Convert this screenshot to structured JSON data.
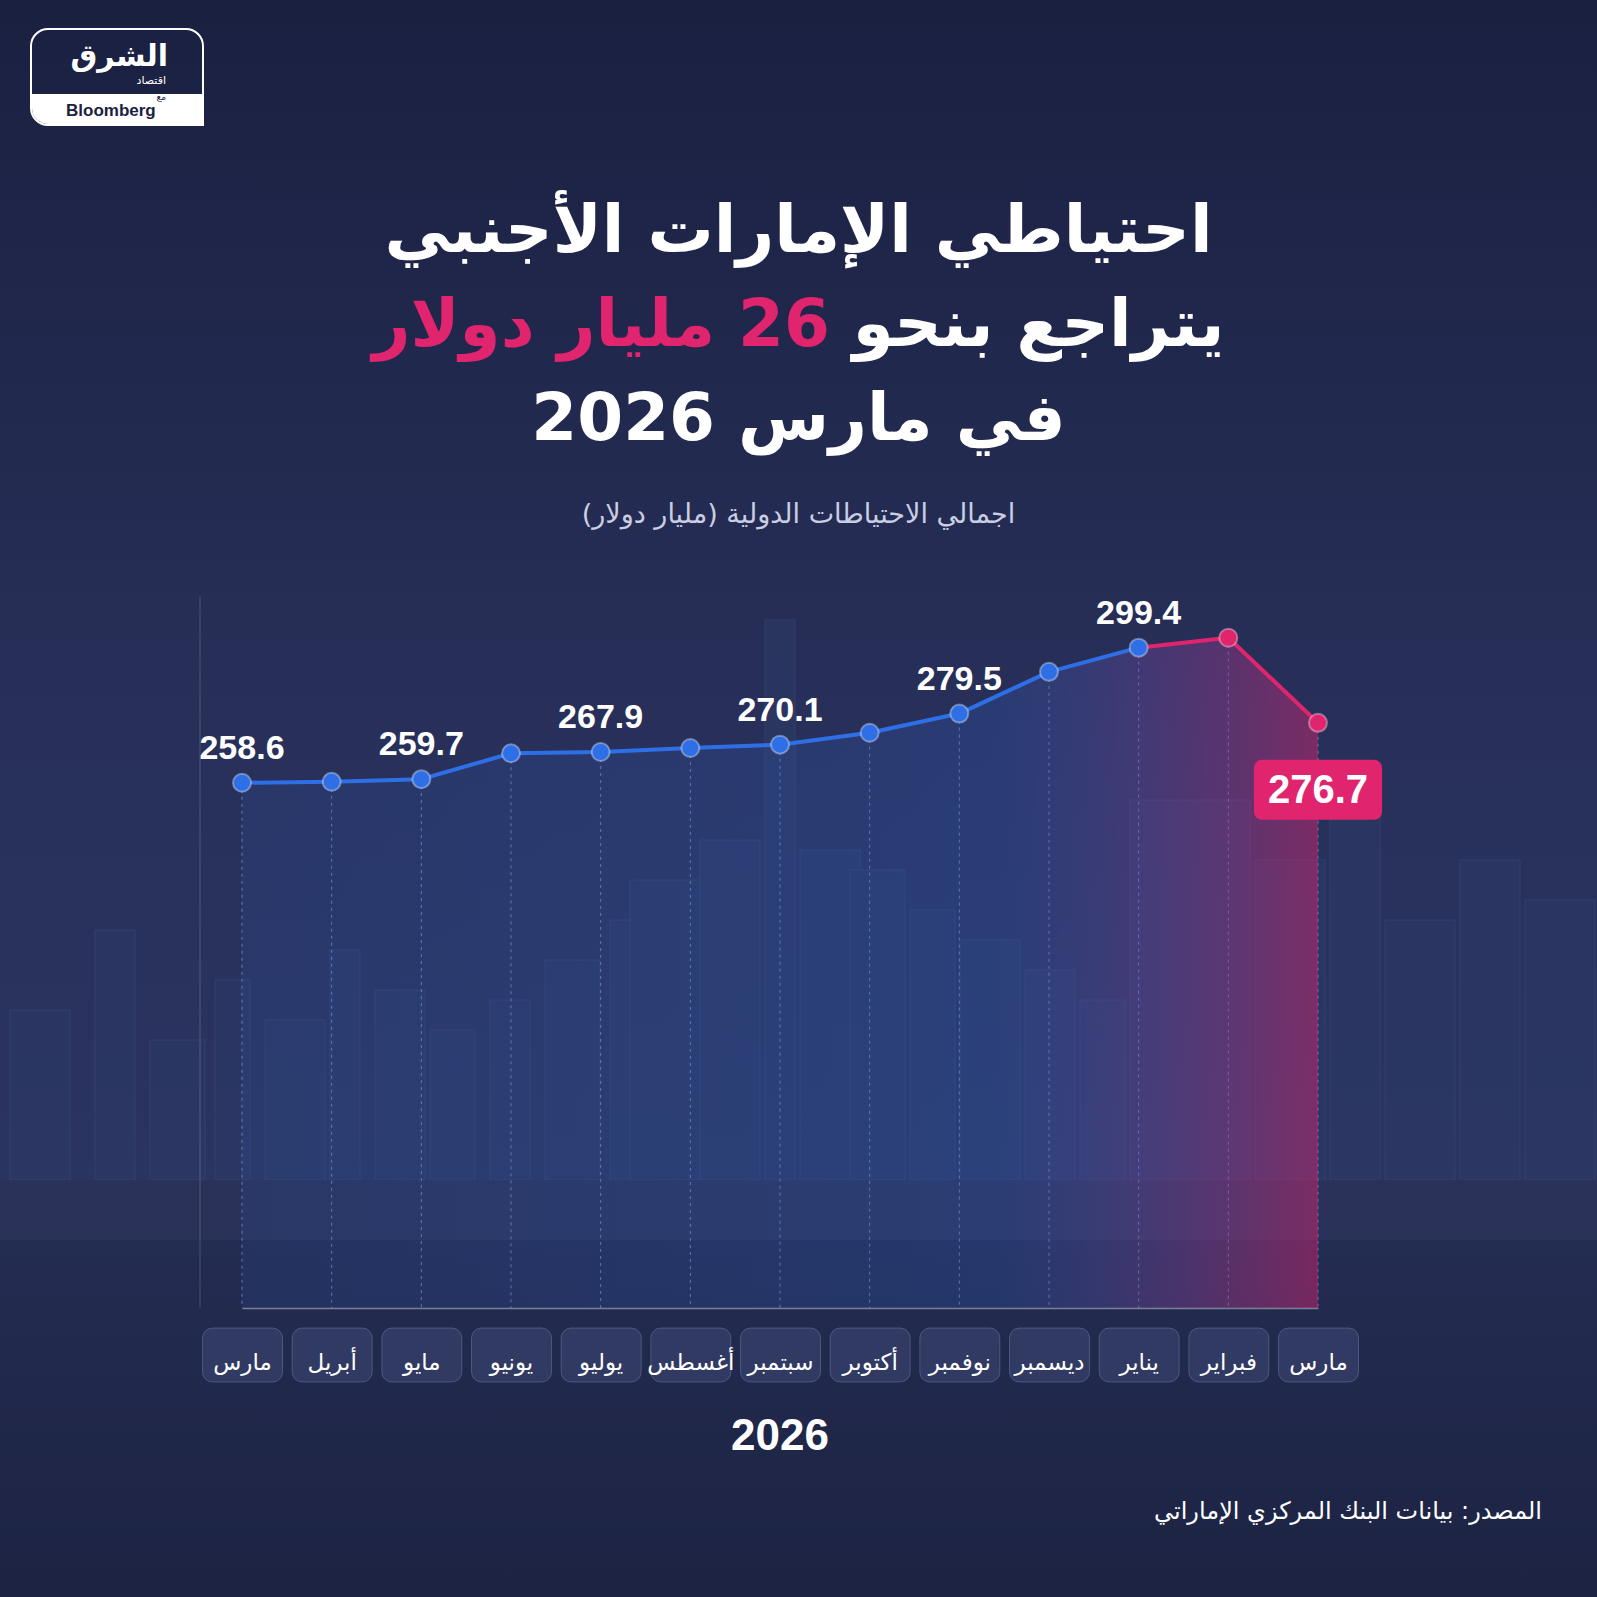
{
  "chart_data": {
    "type": "line",
    "title": [
      "احتياطي الإمارات الأجنبي",
      "يتراجع بنحو 26 مليار دولار",
      "في مارس 2026"
    ],
    "subtitle": "اجمالي الاحتياطات الدولية (مليار دولار)",
    "x_label": "2026",
    "source": "المصدر: بيانات البنك المركزي الإماراتي",
    "brand": {
      "name": "الشرق",
      "sub": "اقتصاد",
      "with": "مع",
      "partner": "Bloomberg"
    },
    "categories": [
      "مارس",
      "أبريل",
      "مايو",
      "يونيو",
      "يوليو",
      "أغسطس",
      "سبتمبر",
      "أكتوبر",
      "نوفمبر",
      "ديسمبر",
      "يناير",
      "فبراير",
      "مارس"
    ],
    "values": [
      258.6,
      258.9,
      259.7,
      267.5,
      267.9,
      269.1,
      270.1,
      273.7,
      279.5,
      292.1,
      299.4,
      302.4,
      276.7
    ],
    "value_labels": [
      "258.6",
      null,
      "259.7",
      null,
      "267.9",
      null,
      "270.1",
      null,
      "279.5",
      null,
      "299.4",
      null,
      "276.7"
    ],
    "data_labels": true,
    "color": "#2f6fe6",
    "colors": [
      "#2f6fe6",
      "#2f6fe6",
      "#2f6fe6",
      "#2f6fe6",
      "#2f6fe6",
      "#2f6fe6",
      "#2f6fe6",
      "#2f6fe6",
      "#2f6fe6",
      "#2f6fe6",
      "#2f6fe6",
      "#e0246e",
      "#e0246e"
    ],
    "marker": "circle",
    "ylim": [
      100,
      315
    ],
    "tick_labels": "x",
    "grid": true
  }
}
